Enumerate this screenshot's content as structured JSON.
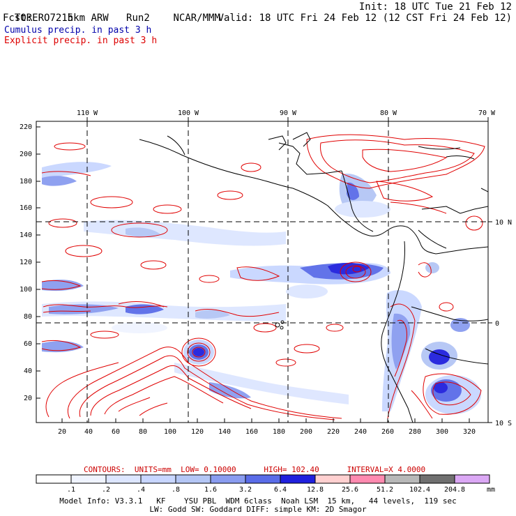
{
  "header": {
    "model": "TORERO",
    "resolution": "15km ARW",
    "run": "Run2",
    "org": "NCAR/MMM",
    "init": "Init: 18 UTC Tue 21 Feb 12",
    "fcst_label": "Fcst:",
    "fcst_value": "72 h",
    "valid": "Valid: 18 UTC Fri 24 Feb 12 (12 CST Fri 24 Feb 12)"
  },
  "legend": {
    "cumulus": "Cumulus precip. in past 3 h",
    "cumulus_color": "#0000aa",
    "explicit": "Explicit precip. in past 3 h",
    "explicit_color": "#dd0000"
  },
  "map": {
    "lon_labels": [
      "110 W",
      "100 W",
      "90 W",
      "80 W",
      "70 W"
    ],
    "lat_labels": [
      "10 N",
      "0",
      "10 S"
    ],
    "y_ticks": [
      "220",
      "200",
      "180",
      "160",
      "140",
      "120",
      "100",
      "80",
      "60",
      "40",
      "20"
    ],
    "x_ticks": [
      "20",
      "40",
      "60",
      "80",
      "100",
      "120",
      "140",
      "160",
      "180",
      "200",
      "220",
      "240",
      "260",
      "280",
      "300",
      "320"
    ]
  },
  "contours": {
    "label": "CONTOURS:",
    "units": "UNITS=mm",
    "low": "LOW= 0.10000",
    "high": "HIGH= 102.40",
    "interval": "INTERVAL=X 4.0000"
  },
  "colorbar": {
    "unit": "mm",
    "labels": [
      ".1",
      ".2",
      ".4",
      ".8",
      "1.6",
      "3.2",
      "6.4",
      "12.8",
      "25.6",
      "51.2",
      "102.4",
      "204.8"
    ],
    "colors": [
      "#ffffff",
      "#f0f4ff",
      "#dde6ff",
      "#c8d6ff",
      "#b4c6f5",
      "#8a9cf0",
      "#5a6ce8",
      "#2020dd",
      "#ffd0d0",
      "#ff8ab0",
      "#b8b8b8",
      "#707070",
      "#dba8f5"
    ]
  },
  "footer": {
    "line1": "Model Info: V3.3.1   KF    YSU PBL  WDM 6class  Noah LSM  15 km,   44 levels,  119 sec",
    "line2": "LW: Godd SW: Goddard DIFF: simple KM: 2D Smagor"
  }
}
